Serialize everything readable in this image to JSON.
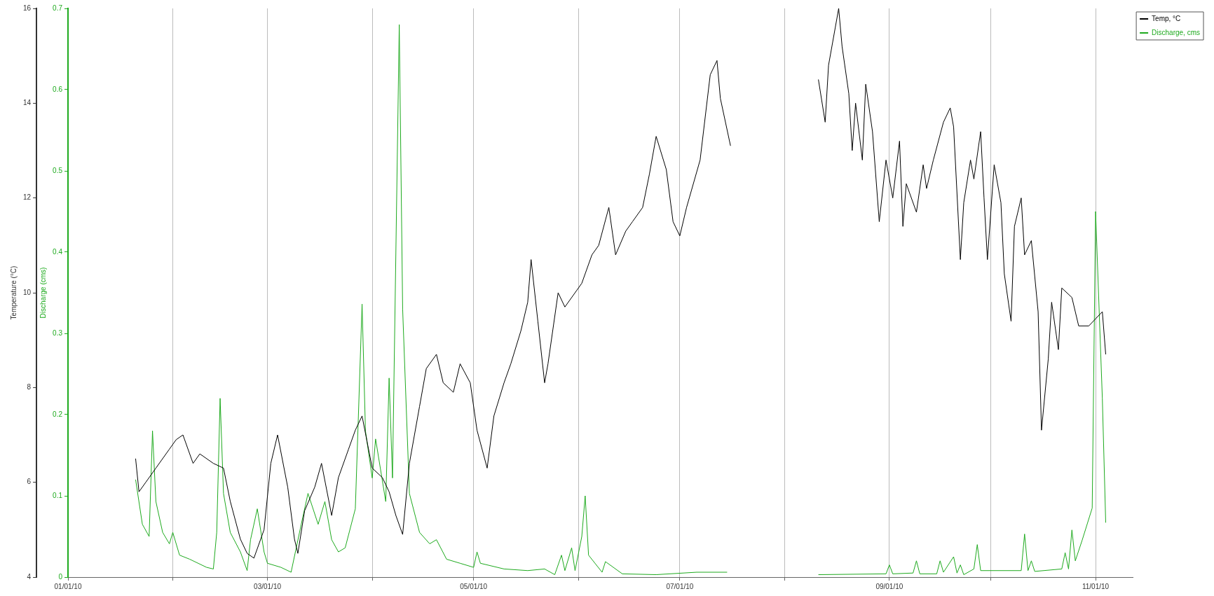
{
  "chart_data": {
    "type": "line",
    "ylabel": "Temperature (°C)",
    "y2label": "Discharge (cms)",
    "legend": "top right",
    "grid": "x",
    "xlim": [
      "2010-01-01",
      "2010-11-12"
    ],
    "xticks": [
      {
        "value": "2010-01-01",
        "label": "01/01/10"
      },
      {
        "value": "2010-02-01",
        "label": null
      },
      {
        "value": "2010-03-01",
        "label": "03/01/10"
      },
      {
        "value": "2010-04-01",
        "label": null
      },
      {
        "value": "2010-05-01",
        "label": "05/01/10"
      },
      {
        "value": "2010-06-01",
        "label": null
      },
      {
        "value": "2010-07-01",
        "label": "07/01/10"
      },
      {
        "value": "2010-08-01",
        "label": null
      },
      {
        "value": "2010-09-01",
        "label": "09/01/10"
      },
      {
        "value": "2010-10-01",
        "label": null
      },
      {
        "value": "2010-11-01",
        "label": "11/01/10"
      }
    ],
    "ylim": [
      4,
      16
    ],
    "yticks": [
      4,
      6,
      8,
      10,
      12,
      14,
      16
    ],
    "y2lim": [
      0,
      0.7
    ],
    "y2ticks": [
      0,
      0.1,
      0.2,
      0.3,
      0.4,
      0.5,
      0.6,
      0.7
    ],
    "series": [
      {
        "name": "Temp, °C",
        "color": "#000000",
        "x": [
          "2010-01-21",
          "2010-01-22",
          "2010-01-24",
          "2010-01-27",
          "2010-01-31",
          "2010-02-02",
          "2010-02-04",
          "2010-02-07",
          "2010-02-09",
          "2010-02-13",
          "2010-02-16",
          "2010-02-18",
          "2010-02-21",
          "2010-02-23",
          "2010-02-25",
          "2010-02-28",
          "2010-03-02",
          "2010-03-04",
          "2010-03-07",
          "2010-03-09",
          "2010-03-10",
          "2010-03-12",
          "2010-03-15",
          "2010-03-17",
          "2010-03-20",
          "2010-03-22",
          "2010-03-25",
          "2010-03-27",
          "2010-03-29",
          "2010-04-01",
          "2010-04-04",
          "2010-04-06",
          "2010-04-08",
          "2010-04-10",
          "2010-04-12",
          "2010-04-15",
          "2010-04-17",
          "2010-04-20",
          "2010-04-22",
          "2010-04-25",
          "2010-04-27",
          "2010-04-30",
          "2010-05-02",
          "2010-05-05",
          "2010-05-07",
          "2010-05-10",
          "2010-05-12",
          "2010-05-15",
          "2010-05-17",
          "2010-05-18",
          "2010-05-20",
          "2010-05-22",
          "2010-05-23",
          "2010-05-26",
          "2010-05-28",
          "2010-05-31",
          "2010-06-02",
          "2010-06-05",
          "2010-06-07",
          "2010-06-10",
          "2010-06-12",
          "2010-06-15",
          "2010-06-17",
          "2010-06-20",
          "2010-06-22",
          "2010-06-24",
          "2010-06-27",
          "2010-06-29",
          "2010-07-01",
          "2010-07-03",
          "2010-07-07",
          "2010-07-10",
          "2010-07-12",
          "2010-07-13",
          "2010-07-16",
          "2010-07-30",
          "2010-08-11",
          "2010-08-13",
          "2010-08-14",
          "2010-08-16",
          "2010-08-17",
          "2010-08-18",
          "2010-08-20",
          "2010-08-21",
          "2010-08-22",
          "2010-08-24",
          "2010-08-25",
          "2010-08-27",
          "2010-08-29",
          "2010-08-31",
          "2010-09-02",
          "2010-09-04",
          "2010-09-05",
          "2010-09-06",
          "2010-09-09",
          "2010-09-11",
          "2010-09-12",
          "2010-09-14",
          "2010-09-17",
          "2010-09-19",
          "2010-09-20",
          "2010-09-22",
          "2010-09-23",
          "2010-09-25",
          "2010-09-26",
          "2010-09-28",
          "2010-09-29",
          "2010-09-30",
          "2010-10-02",
          "2010-10-04",
          "2010-10-05",
          "2010-10-07",
          "2010-10-08",
          "2010-10-10",
          "2010-10-11",
          "2010-10-13",
          "2010-10-15",
          "2010-10-16",
          "2010-10-18",
          "2010-10-19",
          "2010-10-21",
          "2010-10-22",
          "2010-10-25",
          "2010-10-27",
          "2010-10-30",
          "2010-11-03",
          "2010-11-04"
        ],
        "values": [
          6.5,
          5.8,
          6.0,
          6.3,
          6.7,
          6.9,
          7.0,
          6.4,
          6.6,
          6.4,
          6.3,
          5.6,
          4.8,
          4.5,
          4.4,
          5.0,
          6.4,
          7.0,
          5.9,
          4.8,
          4.5,
          5.4,
          5.9,
          6.4,
          5.3,
          6.1,
          6.7,
          7.1,
          7.4,
          6.3,
          6.1,
          5.8,
          5.3,
          4.9,
          6.4,
          7.6,
          8.4,
          8.7,
          8.1,
          7.9,
          8.5,
          8.1,
          7.1,
          6.3,
          7.4,
          8.1,
          8.5,
          9.2,
          9.8,
          10.7,
          9.4,
          8.1,
          8.5,
          10.0,
          9.7,
          10.0,
          10.2,
          10.8,
          11.0,
          11.8,
          10.8,
          11.3,
          11.5,
          11.8,
          12.5,
          13.3,
          12.6,
          11.5,
          11.2,
          11.8,
          12.8,
          14.6,
          14.9,
          14.1,
          13.1,
          null,
          14.5,
          13.6,
          14.8,
          15.6,
          16.0,
          15.2,
          14.2,
          13.0,
          14.0,
          12.8,
          14.4,
          13.4,
          11.5,
          12.8,
          12.0,
          13.2,
          11.4,
          12.3,
          11.7,
          12.7,
          12.2,
          12.8,
          13.6,
          13.9,
          13.5,
          10.7,
          11.9,
          12.8,
          12.4,
          13.4,
          12.0,
          10.7,
          12.7,
          11.9,
          10.4,
          9.4,
          11.4,
          12.0,
          10.8,
          11.1,
          9.6,
          7.1,
          8.6,
          9.8,
          8.8,
          10.1,
          9.9,
          9.3,
          9.3,
          9.6,
          8.7
        ]
      },
      {
        "name": "Discharge, cms",
        "color": "#1eaa1e",
        "axis": "y2",
        "x": [
          "2010-01-21",
          "2010-01-23",
          "2010-01-25",
          "2010-01-26",
          "2010-01-27",
          "2010-01-29",
          "2010-01-31",
          "2010-02-01",
          "2010-02-03",
          "2010-02-06",
          "2010-02-11",
          "2010-02-13",
          "2010-02-14",
          "2010-02-15",
          "2010-02-16",
          "2010-02-18",
          "2010-02-21",
          "2010-02-23",
          "2010-02-24",
          "2010-02-26",
          "2010-02-28",
          "2010-03-01",
          "2010-03-05",
          "2010-03-08",
          "2010-03-11",
          "2010-03-13",
          "2010-03-16",
          "2010-03-18",
          "2010-03-20",
          "2010-03-22",
          "2010-03-24",
          "2010-03-27",
          "2010-03-29",
          "2010-03-30",
          "2010-04-01",
          "2010-04-02",
          "2010-04-05",
          "2010-04-06",
          "2010-04-07",
          "2010-04-09",
          "2010-04-10",
          "2010-04-12",
          "2010-04-15",
          "2010-04-18",
          "2010-04-20",
          "2010-04-23",
          "2010-04-27",
          "2010-05-01",
          "2010-05-02",
          "2010-05-03",
          "2010-05-10",
          "2010-05-17",
          "2010-05-22",
          "2010-05-25",
          "2010-05-27",
          "2010-05-28",
          "2010-05-30",
          "2010-05-31",
          "2010-06-02",
          "2010-06-03",
          "2010-06-04",
          "2010-06-08",
          "2010-06-09",
          "2010-06-14",
          "2010-06-24",
          "2010-07-06",
          "2010-07-15",
          "2010-07-30",
          "2010-08-11",
          "2010-08-31",
          "2010-09-01",
          "2010-09-02",
          "2010-09-08",
          "2010-09-09",
          "2010-09-10",
          "2010-09-15",
          "2010-09-16",
          "2010-09-17",
          "2010-09-20",
          "2010-09-21",
          "2010-09-22",
          "2010-09-23",
          "2010-09-26",
          "2010-09-27",
          "2010-09-28",
          "2010-10-10",
          "2010-10-11",
          "2010-10-12",
          "2010-10-13",
          "2010-10-14",
          "2010-10-22",
          "2010-10-23",
          "2010-10-24",
          "2010-10-25",
          "2010-10-26",
          "2010-10-28",
          "2010-10-31",
          "2010-11-01",
          "2010-11-03",
          "2010-11-04"
        ],
        "values": [
          0.12,
          0.065,
          0.05,
          0.18,
          0.093,
          0.055,
          0.041,
          0.055,
          0.027,
          0.022,
          0.012,
          0.01,
          0.055,
          0.22,
          0.103,
          0.055,
          0.031,
          0.008,
          0.046,
          0.084,
          0.031,
          0.017,
          0.012,
          0.006,
          0.065,
          0.103,
          0.065,
          0.093,
          0.046,
          0.031,
          0.036,
          0.084,
          0.336,
          0.18,
          0.122,
          0.17,
          0.093,
          0.245,
          0.122,
          0.68,
          0.33,
          0.103,
          0.055,
          0.041,
          0.046,
          0.022,
          0.017,
          0.012,
          0.031,
          0.017,
          0.01,
          0.008,
          0.01,
          0.003,
          0.027,
          0.008,
          0.036,
          0.008,
          0.05,
          0.1,
          0.027,
          0.006,
          0.019,
          0.004,
          0.003,
          0.006,
          0.006,
          null,
          0.003,
          0.004,
          0.015,
          0.004,
          0.005,
          0.02,
          0.004,
          0.004,
          0.02,
          0.006,
          0.025,
          0.005,
          0.015,
          0.003,
          0.01,
          0.04,
          0.008,
          0.008,
          0.053,
          0.008,
          0.02,
          0.007,
          0.01,
          0.03,
          0.01,
          0.058,
          0.02,
          0.045,
          0.085,
          0.45,
          0.22,
          0.067
        ]
      }
    ]
  }
}
